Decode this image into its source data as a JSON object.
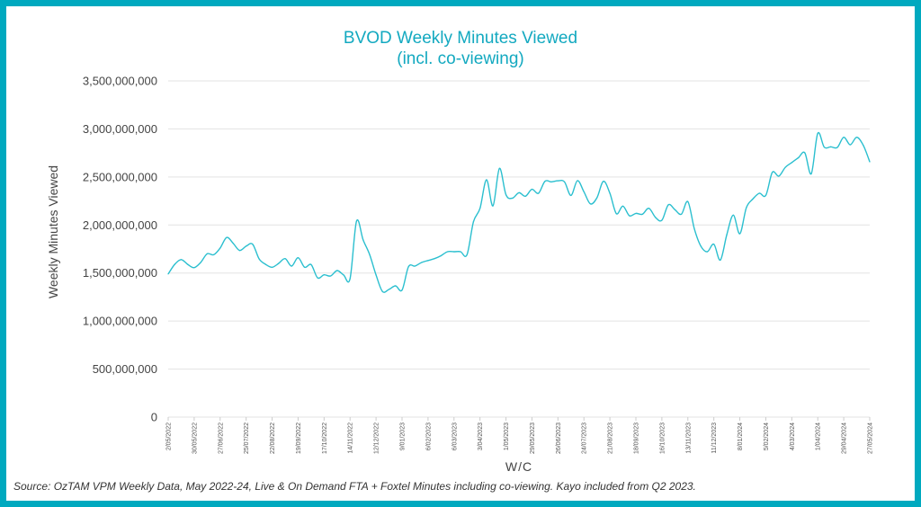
{
  "chart_data": {
    "type": "line",
    "title": "BVOD Weekly Minutes Viewed",
    "subtitle": "(incl. co-viewing)",
    "xlabel": "W/C",
    "ylabel": "Weekly Minutes Viewed",
    "ylim": [
      0,
      3500000000
    ],
    "y_ticks": [
      "0",
      "500,000,000",
      "1,000,000,000",
      "1,500,000,000",
      "2,000,000,000",
      "2,500,000,000",
      "3,000,000,000",
      "3,500,000,000"
    ],
    "x_tick_labels": [
      "2/05/2022",
      "30/05/2022",
      "27/06/2022",
      "25/07/2022",
      "22/08/2022",
      "19/09/2022",
      "17/10/2022",
      "14/11/2022",
      "12/12/2022",
      "9/01/2023",
      "6/02/2023",
      "6/03/2023",
      "3/04/2023",
      "1/05/2023",
      "29/05/2023",
      "26/06/2023",
      "24/07/2023",
      "21/08/2023",
      "18/09/2023",
      "16/10/2023",
      "13/11/2023",
      "11/12/2023",
      "8/01/2024",
      "5/02/2024",
      "4/03/2024",
      "1/04/2024",
      "29/04/2024",
      "27/05/2024"
    ],
    "x_tick_every_weeks": 4,
    "grid": true,
    "line_color": "#2bbfcf",
    "values_millions": [
      1490,
      1590,
      1640,
      1590,
      1556,
      1610,
      1700,
      1690,
      1760,
      1870,
      1810,
      1735,
      1780,
      1800,
      1647,
      1590,
      1560,
      1600,
      1650,
      1572,
      1659,
      1560,
      1588,
      1450,
      1481,
      1469,
      1525,
      1480,
      1441,
      2040,
      1846,
      1694,
      1480,
      1307,
      1330,
      1366,
      1322,
      1566,
      1572,
      1610,
      1630,
      1650,
      1680,
      1722,
      1722,
      1722,
      1690,
      2034,
      2174,
      2471,
      2199,
      2589,
      2314,
      2280,
      2336,
      2299,
      2371,
      2330,
      2455,
      2449,
      2460,
      2449,
      2308,
      2461,
      2346,
      2220,
      2283,
      2455,
      2330,
      2118,
      2196,
      2096,
      2121,
      2112,
      2174,
      2080,
      2049,
      2210,
      2160,
      2112,
      2243,
      1960,
      1780,
      1722,
      1800,
      1635,
      1900,
      2103,
      1909,
      2180,
      2270,
      2330,
      2308,
      2548,
      2508,
      2600,
      2650,
      2700,
      2751,
      2533,
      2954,
      2810,
      2814,
      2807,
      2913,
      2835,
      2913,
      2830,
      2658
    ]
  },
  "source": "Source: OzTAM VPM Weekly Data, May 2022-24, Live & On Demand FTA + Foxtel Minutes including co-viewing. Kayo included from Q2 2023.",
  "colors": {
    "frame": "#00a9bf",
    "title": "#13a9c0"
  }
}
